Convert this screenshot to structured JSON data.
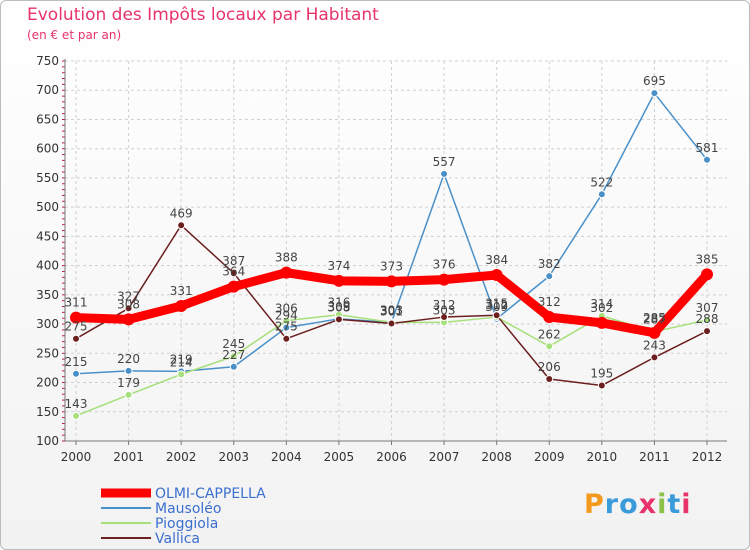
{
  "chart_data": {
    "type": "line",
    "title": "Evolution des Impôts locaux par Habitant",
    "subtitle": "(en € et par an)",
    "xlabel": "",
    "ylabel": "",
    "ylim": [
      100,
      750
    ],
    "yticks": [
      100,
      150,
      200,
      250,
      300,
      350,
      400,
      450,
      500,
      550,
      600,
      650,
      700,
      750
    ],
    "categories": [
      "2000",
      "2001",
      "2002",
      "2003",
      "2004",
      "2005",
      "2006",
      "2007",
      "2008",
      "2009",
      "2010",
      "2011",
      "2012"
    ],
    "series": [
      {
        "name": "OLMI-CAPPELLA",
        "color": "#ff0000",
        "emphasis": true,
        "values": [
          311,
          308,
          331,
          364,
          388,
          374,
          373,
          376,
          384,
          312,
          302,
          285,
          385
        ]
      },
      {
        "name": "Mausoléo",
        "color": "#4a90c8",
        "values": [
          215,
          220,
          219,
          227,
          294,
          309,
          303,
          557,
          309,
          382,
          522,
          695,
          581
        ]
      },
      {
        "name": "Pioggiola",
        "color": "#a6e07a",
        "values": [
          143,
          179,
          214,
          245,
          306,
          316,
          303,
          303,
          312,
          262,
          314,
          287,
          307
        ]
      },
      {
        "name": "Vallica",
        "color": "#6b1f1f",
        "values": [
          275,
          327,
          469,
          387,
          275,
          308,
          301,
          312,
          315,
          206,
          195,
          243,
          288
        ]
      }
    ],
    "legend_position": "bottom-left",
    "grid": true
  },
  "logo": {
    "letters": [
      "P",
      "r",
      "o",
      "x",
      "i",
      "t",
      "i"
    ]
  }
}
